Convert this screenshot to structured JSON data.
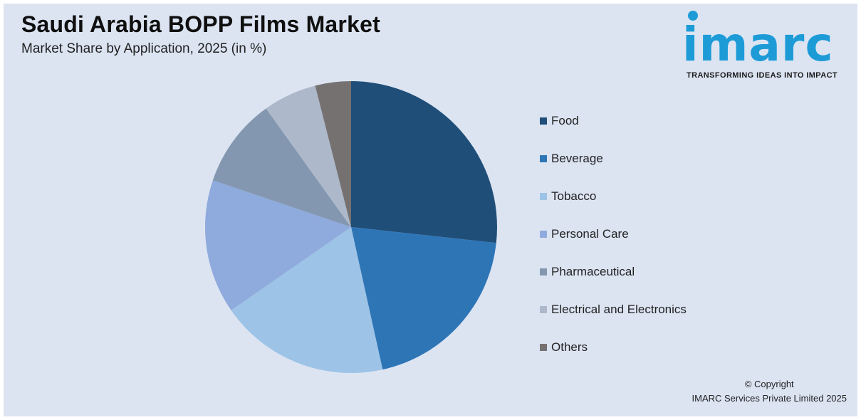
{
  "header": {
    "title": "Saudi Arabia BOPP Films Market",
    "subtitle": "Market Share by Application, 2025 (in %)"
  },
  "logo": {
    "wordmark": "imarc",
    "tagline": "TRANSFORMING IDEAS INTO IMPACT",
    "color": "#1d9bd7"
  },
  "footer": {
    "copyright_line1": "© Copyright",
    "copyright_line2": "IMARC Services Private Limited 2025"
  },
  "chart_data": {
    "type": "pie",
    "title": "Saudi Arabia BOPP Films Market",
    "subtitle": "Market Share by Application, 2025 (in %)",
    "legend_position": "right",
    "start_angle": "12 o'clock, clockwise",
    "categories": [
      "Food",
      "Beverage",
      "Tobacco",
      "Personal Care",
      "Pharmaceutical",
      "Electrical and Electronics",
      "Others"
    ],
    "values": [
      27,
      20,
      19,
      15,
      10,
      6,
      4
    ],
    "colors": [
      "#1f4e79",
      "#2e75b6",
      "#9dc3e6",
      "#8faadc",
      "#8497b0",
      "#adb9ca",
      "#767171"
    ]
  }
}
